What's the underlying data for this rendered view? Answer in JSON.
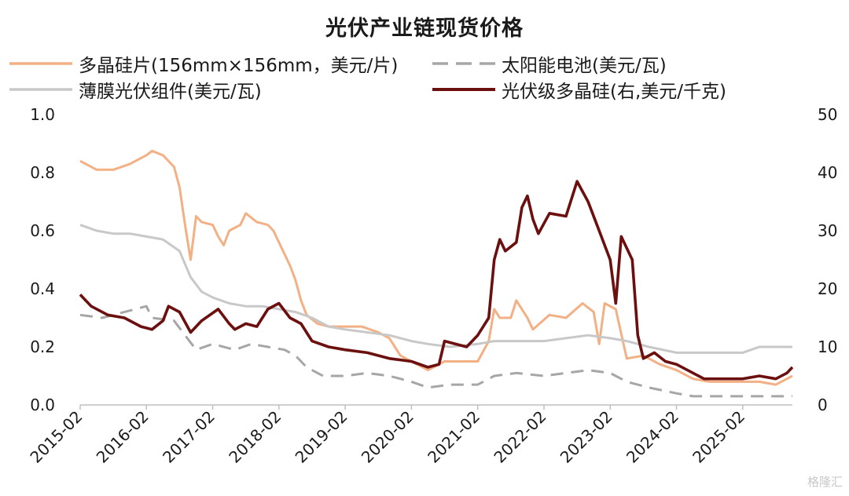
{
  "chart_data": {
    "type": "line",
    "title": "光伏产业链现货价格",
    "x_start": "2015-02",
    "x_end": "2025-11",
    "x_ticks": [
      "2015-02",
      "2016-02",
      "2017-02",
      "2018-02",
      "2019-02",
      "2020-02",
      "2021-02",
      "2022-02",
      "2023-02",
      "2024-02",
      "2025-02"
    ],
    "y_left": {
      "min": 0,
      "max": 1.0,
      "ticks": [
        "0.0",
        "0.2",
        "0.4",
        "0.6",
        "0.8",
        "1.0"
      ]
    },
    "y_right": {
      "min": 0,
      "max": 50,
      "ticks": [
        "0",
        "10",
        "20",
        "30",
        "40",
        "50"
      ]
    },
    "legend_placement": "top",
    "grid": false,
    "series": [
      {
        "name": "多晶硅片(156mm×156mm，美元/片)",
        "axis": "left",
        "color": "#f2b084",
        "style": "solid",
        "points": [
          [
            "2015-02",
            0.84
          ],
          [
            "2015-05",
            0.81
          ],
          [
            "2015-08",
            0.81
          ],
          [
            "2015-11",
            0.83
          ],
          [
            "2016-02",
            0.86
          ],
          [
            "2016-03",
            0.875
          ],
          [
            "2016-05",
            0.86
          ],
          [
            "2016-07",
            0.82
          ],
          [
            "2016-08",
            0.75
          ],
          [
            "2016-09",
            0.62
          ],
          [
            "2016-10",
            0.5
          ],
          [
            "2016-11",
            0.65
          ],
          [
            "2016-12",
            0.63
          ],
          [
            "2017-02",
            0.62
          ],
          [
            "2017-03",
            0.58
          ],
          [
            "2017-04",
            0.55
          ],
          [
            "2017-05",
            0.6
          ],
          [
            "2017-07",
            0.62
          ],
          [
            "2017-08",
            0.66
          ],
          [
            "2017-10",
            0.63
          ],
          [
            "2017-12",
            0.62
          ],
          [
            "2018-01",
            0.6
          ],
          [
            "2018-03",
            0.52
          ],
          [
            "2018-04",
            0.48
          ],
          [
            "2018-05",
            0.43
          ],
          [
            "2018-06",
            0.36
          ],
          [
            "2018-07",
            0.31
          ],
          [
            "2018-09",
            0.28
          ],
          [
            "2018-11",
            0.27
          ],
          [
            "2019-02",
            0.27
          ],
          [
            "2019-05",
            0.27
          ],
          [
            "2019-08",
            0.25
          ],
          [
            "2019-10",
            0.23
          ],
          [
            "2019-12",
            0.17
          ],
          [
            "2020-02",
            0.15
          ],
          [
            "2020-05",
            0.12
          ],
          [
            "2020-08",
            0.15
          ],
          [
            "2020-11",
            0.15
          ],
          [
            "2021-02",
            0.15
          ],
          [
            "2021-04",
            0.22
          ],
          [
            "2021-05",
            0.33
          ],
          [
            "2021-06",
            0.3
          ],
          [
            "2021-08",
            0.3
          ],
          [
            "2021-09",
            0.36
          ],
          [
            "2021-11",
            0.3
          ],
          [
            "2021-12",
            0.26
          ],
          [
            "2022-03",
            0.31
          ],
          [
            "2022-06",
            0.3
          ],
          [
            "2022-09",
            0.35
          ],
          [
            "2022-11",
            0.32
          ],
          [
            "2022-12",
            0.21
          ],
          [
            "2023-01",
            0.35
          ],
          [
            "2023-03",
            0.33
          ],
          [
            "2023-05",
            0.16
          ],
          [
            "2023-08",
            0.17
          ],
          [
            "2023-11",
            0.14
          ],
          [
            "2024-02",
            0.12
          ],
          [
            "2024-05",
            0.09
          ],
          [
            "2024-08",
            0.08
          ],
          [
            "2024-11",
            0.08
          ],
          [
            "2025-02",
            0.08
          ],
          [
            "2025-05",
            0.08
          ],
          [
            "2025-08",
            0.07
          ],
          [
            "2025-11",
            0.1
          ]
        ]
      },
      {
        "name": "太阳能电池(美元/瓦)",
        "axis": "left",
        "color": "#a6a6a6",
        "style": "dashed",
        "points": [
          [
            "2015-02",
            0.31
          ],
          [
            "2015-06",
            0.3
          ],
          [
            "2015-10",
            0.32
          ],
          [
            "2016-02",
            0.34
          ],
          [
            "2016-03",
            0.3
          ],
          [
            "2016-07",
            0.29
          ],
          [
            "2016-09",
            0.24
          ],
          [
            "2016-11",
            0.19
          ],
          [
            "2017-02",
            0.21
          ],
          [
            "2017-06",
            0.19
          ],
          [
            "2017-09",
            0.21
          ],
          [
            "2017-12",
            0.2
          ],
          [
            "2018-03",
            0.19
          ],
          [
            "2018-05",
            0.17
          ],
          [
            "2018-07",
            0.13
          ],
          [
            "2018-10",
            0.1
          ],
          [
            "2019-02",
            0.1
          ],
          [
            "2019-06",
            0.11
          ],
          [
            "2019-10",
            0.1
          ],
          [
            "2020-02",
            0.08
          ],
          [
            "2020-05",
            0.06
          ],
          [
            "2020-09",
            0.07
          ],
          [
            "2021-02",
            0.07
          ],
          [
            "2021-05",
            0.1
          ],
          [
            "2021-09",
            0.11
          ],
          [
            "2022-02",
            0.1
          ],
          [
            "2022-06",
            0.11
          ],
          [
            "2022-10",
            0.12
          ],
          [
            "2023-02",
            0.11
          ],
          [
            "2023-05",
            0.08
          ],
          [
            "2023-09",
            0.06
          ],
          [
            "2024-02",
            0.04
          ],
          [
            "2024-05",
            0.03
          ],
          [
            "2024-10",
            0.03
          ],
          [
            "2025-05",
            0.03
          ],
          [
            "2025-11",
            0.03
          ]
        ]
      },
      {
        "name": "薄膜光伏组件(美元/瓦)",
        "axis": "left",
        "color": "#c8c8c8",
        "style": "solid",
        "points": [
          [
            "2015-02",
            0.62
          ],
          [
            "2015-05",
            0.6
          ],
          [
            "2015-08",
            0.59
          ],
          [
            "2015-11",
            0.59
          ],
          [
            "2016-02",
            0.58
          ],
          [
            "2016-05",
            0.57
          ],
          [
            "2016-08",
            0.53
          ],
          [
            "2016-10",
            0.44
          ],
          [
            "2016-12",
            0.39
          ],
          [
            "2017-02",
            0.37
          ],
          [
            "2017-05",
            0.35
          ],
          [
            "2017-08",
            0.34
          ],
          [
            "2017-11",
            0.34
          ],
          [
            "2018-02",
            0.33
          ],
          [
            "2018-05",
            0.32
          ],
          [
            "2018-08",
            0.3
          ],
          [
            "2018-11",
            0.27
          ],
          [
            "2019-02",
            0.26
          ],
          [
            "2019-06",
            0.25
          ],
          [
            "2019-10",
            0.24
          ],
          [
            "2020-02",
            0.22
          ],
          [
            "2020-05",
            0.21
          ],
          [
            "2020-09",
            0.2
          ],
          [
            "2021-02",
            0.21
          ],
          [
            "2021-05",
            0.22
          ],
          [
            "2021-09",
            0.22
          ],
          [
            "2022-02",
            0.22
          ],
          [
            "2022-06",
            0.23
          ],
          [
            "2022-10",
            0.24
          ],
          [
            "2023-02",
            0.23
          ],
          [
            "2023-05",
            0.22
          ],
          [
            "2023-09",
            0.2
          ],
          [
            "2024-02",
            0.18
          ],
          [
            "2024-06",
            0.18
          ],
          [
            "2024-10",
            0.18
          ],
          [
            "2025-02",
            0.18
          ],
          [
            "2025-05",
            0.2
          ],
          [
            "2025-11",
            0.2
          ]
        ]
      },
      {
        "name": "光伏级多晶硅(右,美元/千克)",
        "axis": "right",
        "color": "#6b0f0f",
        "style": "solid",
        "points": [
          [
            "2015-02",
            19
          ],
          [
            "2015-04",
            17
          ],
          [
            "2015-07",
            15.5
          ],
          [
            "2015-10",
            15
          ],
          [
            "2016-01",
            13.5
          ],
          [
            "2016-03",
            13
          ],
          [
            "2016-05",
            14.5
          ],
          [
            "2016-06",
            17
          ],
          [
            "2016-08",
            16
          ],
          [
            "2016-10",
            12.5
          ],
          [
            "2016-12",
            14.5
          ],
          [
            "2017-03",
            16.5
          ],
          [
            "2017-05",
            14
          ],
          [
            "2017-06",
            13
          ],
          [
            "2017-08",
            14
          ],
          [
            "2017-10",
            13.5
          ],
          [
            "2017-12",
            16.5
          ],
          [
            "2018-02",
            17.5
          ],
          [
            "2018-04",
            15
          ],
          [
            "2018-06",
            14
          ],
          [
            "2018-08",
            11
          ],
          [
            "2018-11",
            10
          ],
          [
            "2019-02",
            9.5
          ],
          [
            "2019-06",
            9
          ],
          [
            "2019-10",
            8
          ],
          [
            "2020-02",
            7.5
          ],
          [
            "2020-05",
            6.5
          ],
          [
            "2020-07",
            7
          ],
          [
            "2020-08",
            11
          ],
          [
            "2020-12",
            10
          ],
          [
            "2021-02",
            12
          ],
          [
            "2021-04",
            15
          ],
          [
            "2021-05",
            25
          ],
          [
            "2021-06",
            28.5
          ],
          [
            "2021-07",
            26.5
          ],
          [
            "2021-09",
            28
          ],
          [
            "2021-10",
            34
          ],
          [
            "2021-11",
            36
          ],
          [
            "2021-12",
            32
          ],
          [
            "2022-01",
            29.5
          ],
          [
            "2022-03",
            33
          ],
          [
            "2022-06",
            32.5
          ],
          [
            "2022-08",
            38.5
          ],
          [
            "2022-10",
            35
          ],
          [
            "2022-12",
            30
          ],
          [
            "2023-02",
            25
          ],
          [
            "2023-03",
            17.5
          ],
          [
            "2023-04",
            29
          ],
          [
            "2023-06",
            25
          ],
          [
            "2023-07",
            12
          ],
          [
            "2023-08",
            8
          ],
          [
            "2023-10",
            9
          ],
          [
            "2023-12",
            7.5
          ],
          [
            "2024-02",
            7
          ],
          [
            "2024-05",
            5.5
          ],
          [
            "2024-07",
            4.5
          ],
          [
            "2024-10",
            4.5
          ],
          [
            "2025-02",
            4.5
          ],
          [
            "2025-05",
            5
          ],
          [
            "2025-08",
            4.5
          ],
          [
            "2025-10",
            5.5
          ],
          [
            "2025-11",
            6.5
          ]
        ]
      }
    ]
  },
  "footer": {
    "watermark": "格隆汇"
  }
}
